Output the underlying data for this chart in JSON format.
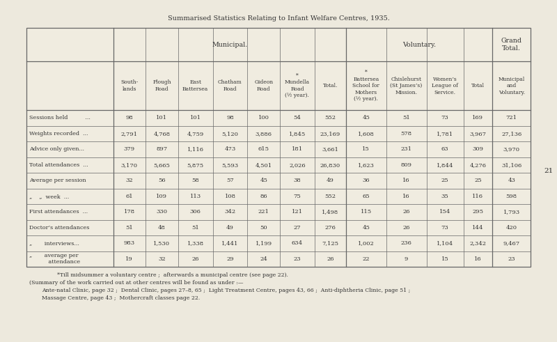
{
  "title": "Summarised Statistics Relating to Infant Welfare Centres, 1935.",
  "background_color": "#ede9dd",
  "table_bg": "#f0ece0",
  "border_color": "#666666",
  "text_color": "#333333",
  "municipal_header": "Municipal.",
  "voluntary_header": "Voluntary.",
  "grand_total_header": "Grand\nTotal.",
  "col_headers": [
    "",
    "South-\nlands",
    "Plough\nRoad",
    "East\nBattersea",
    "Chatham\nRoad",
    "Gideon\nRoad",
    "*\nMundella\nRoad\n(½ year).",
    "Total.",
    "*\nBattersea\nSchool for\nMothers\n(½ year).",
    "Chislehurst\n(St James’s)\nMission.",
    "Women’s\nLeague of\nService.",
    "Total",
    "Municipal\nand\nVoluntary."
  ],
  "row_labels": [
    "Sessions held          ...",
    "Weights recorded  ...",
    "Advice only given...",
    "Total attendances  ...",
    "Average per session",
    "„    „  week  ...",
    "First attendances  ...",
    "Doctor’s attendances",
    "„       interviews...",
    "„       average per\n           attendance"
  ],
  "data": [
    [
      98,
      101,
      101,
      98,
      100,
      54,
      552,
      45,
      51,
      73,
      169,
      721
    ],
    [
      2791,
      4768,
      4759,
      5120,
      3886,
      1845,
      23169,
      1608,
      578,
      1781,
      3967,
      27136
    ],
    [
      379,
      897,
      1116,
      473,
      615,
      181,
      3661,
      15,
      231,
      63,
      309,
      3970
    ],
    [
      3170,
      5665,
      5875,
      5593,
      4501,
      2026,
      26830,
      1623,
      809,
      1844,
      4276,
      31106
    ],
    [
      32,
      56,
      58,
      57,
      45,
      38,
      49,
      36,
      16,
      25,
      25,
      43
    ],
    [
      61,
      109,
      113,
      108,
      86,
      75,
      552,
      65,
      16,
      35,
      116,
      598
    ],
    [
      178,
      330,
      306,
      342,
      221,
      121,
      1498,
      115,
      26,
      154,
      295,
      1793
    ],
    [
      51,
      48,
      51,
      49,
      50,
      27,
      276,
      45,
      26,
      73,
      144,
      420
    ],
    [
      983,
      1530,
      1338,
      1441,
      1199,
      634,
      7125,
      1002,
      236,
      1104,
      2342,
      9467
    ],
    [
      19,
      32,
      26,
      29,
      24,
      23,
      26,
      22,
      9,
      15,
      16,
      23
    ]
  ],
  "footnote1": "*Till midsummer a voluntary centre ;  afterwards a municipal centre (see page 22).",
  "footnote2": "(Summary of the work carried out at other centres will be found as under :—",
  "footnote3": "Ante-natal Clinic, page 32 ;  Dental Clinic, pages 27–8, 65 ;  Light Treatment Centre, pages 43, 66 ;  Anti-diphtheria Clinic, page 51 ;",
  "footnote4": "Massage Centre, page 43 ;  Mothercraft classes page 22.",
  "page_number": "21"
}
